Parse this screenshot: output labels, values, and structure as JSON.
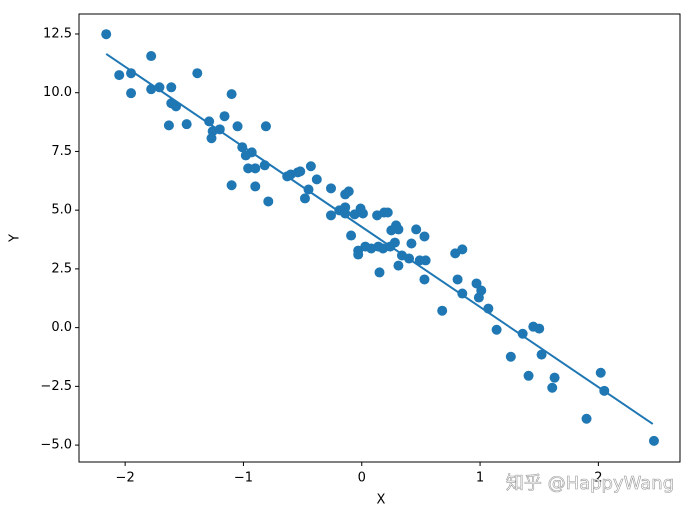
{
  "chart_data": {
    "type": "scatter",
    "xlabel": "X",
    "ylabel": "Y",
    "color": "#1f77b4",
    "xlim": [
      -2.39,
      2.69
    ],
    "ylim": [
      -5.72,
      13.35
    ],
    "xticks": [
      {
        "value": -2,
        "label": "−2"
      },
      {
        "value": -1,
        "label": "−1"
      },
      0,
      1,
      2
    ],
    "yticks": [
      {
        "value": -5,
        "label": "−5.0"
      },
      {
        "value": -2.5,
        "label": "−2.5"
      },
      {
        "value": 0,
        "label": "0.0"
      },
      2.5,
      {
        "value": 5,
        "label": "5.0"
      },
      7.5,
      {
        "value": 10,
        "label": "10.0"
      },
      12.5
    ],
    "points": {
      "x": [
        -2.16,
        -2.05,
        -1.95,
        -1.95,
        -1.78,
        -1.78,
        -1.71,
        -1.61,
        -1.61,
        -1.57,
        -1.63,
        -1.48,
        -1.39,
        -1.1,
        -1.29,
        -1.26,
        -1.27,
        -1.2,
        -1.16,
        -1.05,
        -0.81,
        -1.1,
        -1.01,
        -0.98,
        -0.93,
        -0.96,
        -0.9,
        -0.9,
        -0.82,
        -0.79,
        -0.63,
        -0.6,
        -0.54,
        -0.52,
        -0.43,
        -0.38,
        -0.48,
        -0.45,
        -0.26,
        -0.26,
        -0.19,
        -0.14,
        -0.14,
        -0.11,
        -0.14,
        -0.09,
        -0.06,
        -0.01,
        0.01,
        -0.03,
        -0.03,
        0.03,
        0.08,
        0.14,
        0.13,
        0.18,
        0.19,
        0.22,
        0.15,
        0.24,
        0.25,
        0.29,
        0.31,
        0.28,
        0.31,
        0.34,
        0.4,
        0.42,
        0.46,
        0.49,
        0.53,
        0.54,
        0.53,
        0.68,
        0.79,
        0.85,
        0.81,
        0.85,
        0.97,
        0.99,
        1.01,
        1.07,
        1.14,
        1.26,
        1.36,
        1.45,
        1.5,
        1.52,
        1.41,
        1.63,
        1.61,
        2.02,
        2.05,
        1.9,
        2.47
      ],
      "y": [
        12.49,
        10.75,
        10.83,
        9.98,
        11.56,
        10.15,
        10.23,
        10.23,
        9.55,
        9.42,
        8.61,
        8.66,
        10.83,
        9.94,
        8.78,
        8.36,
        8.06,
        8.44,
        9.0,
        8.57,
        8.57,
        6.06,
        7.68,
        7.33,
        7.46,
        6.78,
        6.78,
        6.01,
        6.91,
        5.37,
        6.44,
        6.52,
        6.61,
        6.65,
        6.87,
        6.31,
        5.5,
        5.88,
        5.93,
        4.78,
        4.99,
        5.12,
        4.86,
        5.8,
        5.67,
        3.92,
        4.82,
        5.07,
        4.86,
        3.28,
        3.11,
        3.45,
        3.37,
        3.45,
        4.78,
        3.37,
        4.9,
        4.9,
        2.35,
        3.45,
        4.14,
        4.35,
        4.18,
        3.62,
        2.64,
        3.07,
        2.94,
        3.58,
        4.18,
        2.86,
        3.88,
        2.86,
        2.05,
        0.72,
        3.16,
        3.33,
        2.05,
        1.45,
        1.88,
        1.28,
        1.58,
        0.81,
        -0.09,
        -1.24,
        -0.26,
        0.04,
        -0.04,
        -1.15,
        -2.05,
        -2.13,
        -2.56,
        -1.92,
        -2.69,
        -3.88,
        -4.82
      ]
    },
    "fit_line": {
      "x": [
        -2.16,
        2.46
      ],
      "y": [
        11.65,
        -4.1
      ]
    },
    "watermark": "知乎 @HappyWang"
  }
}
